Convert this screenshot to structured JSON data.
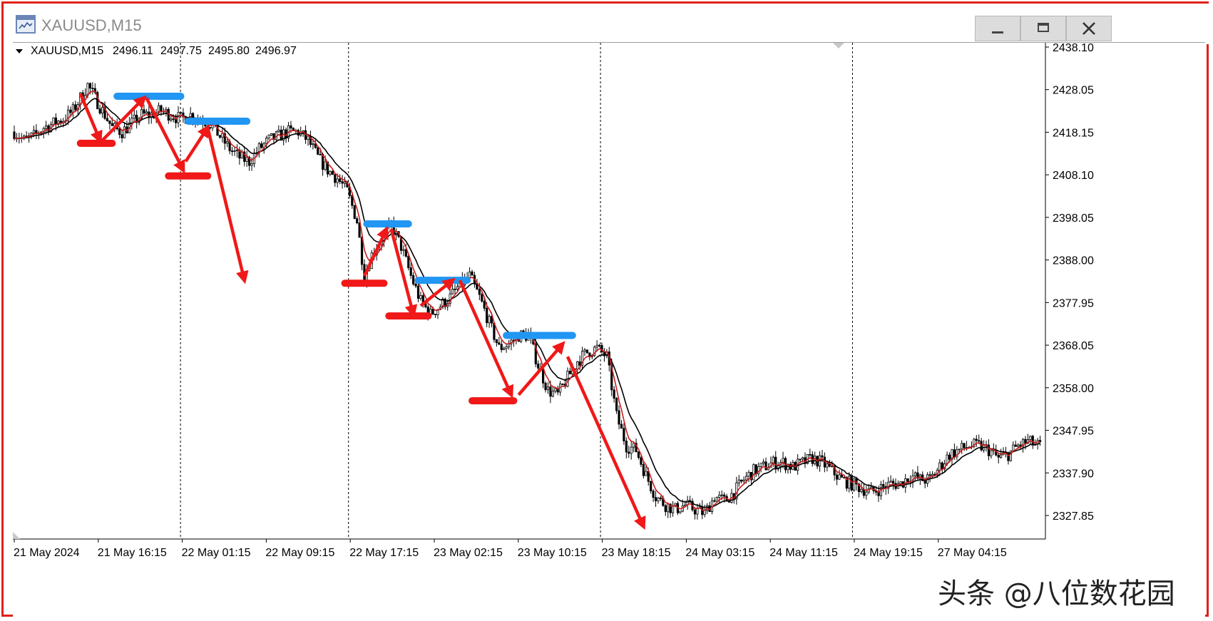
{
  "window": {
    "title": "XAUUSD,M15",
    "buttons": [
      "minimize-icon",
      "restore-icon",
      "close-icon"
    ]
  },
  "chart_header": {
    "symbol": "XAUUSD,M15",
    "open": "2496.11",
    "high": "2497.75",
    "low": "2495.80",
    "close": "2496.97"
  },
  "watermark": "头条 @八位数花园",
  "colors": {
    "frame": "#e0201c",
    "ma_fast": "#c81e1e",
    "ma_slow": "#000000",
    "resistance": "#2196f3",
    "support": "#f01818",
    "arrow": "#f01818"
  },
  "chart_data": {
    "type": "candlestick",
    "y_ticks": [
      "2438.10",
      "2428.05",
      "2418.15",
      "2408.10",
      "2398.05",
      "2388.00",
      "2377.95",
      "2368.05",
      "2358.00",
      "2347.95",
      "2337.90",
      "2327.85"
    ],
    "x_ticks": [
      "21 May 2024",
      "21 May 16:15",
      "22 May 01:15",
      "22 May 09:15",
      "22 May 17:15",
      "23 May 02:15",
      "23 May 10:15",
      "23 May 18:15",
      "24 May 03:15",
      "24 May 11:15",
      "24 May 19:15",
      "27 May 04:15"
    ],
    "ylim": [
      2323,
      2440
    ],
    "day_separators_x": [
      "22 May 01:15",
      "22 May 17:15",
      "23 May 18:15",
      "24 May 19:15"
    ],
    "path_points": [
      [
        0,
        2419
      ],
      [
        4,
        2417
      ],
      [
        8,
        2418
      ],
      [
        12,
        2420
      ],
      [
        16,
        2421
      ],
      [
        20,
        2422
      ],
      [
        24,
        2424
      ],
      [
        27,
        2427
      ],
      [
        30,
        2430
      ],
      [
        33,
        2427
      ],
      [
        36,
        2424
      ],
      [
        40,
        2420
      ],
      [
        44,
        2419
      ],
      [
        48,
        2421
      ],
      [
        52,
        2423
      ],
      [
        56,
        2423
      ],
      [
        60,
        2424
      ],
      [
        64,
        2423
      ],
      [
        68,
        2422
      ],
      [
        72,
        2423
      ],
      [
        76,
        2422
      ],
      [
        80,
        2421
      ],
      [
        84,
        2418
      ],
      [
        88,
        2415
      ],
      [
        92,
        2413
      ],
      [
        96,
        2412
      ],
      [
        100,
        2415
      ],
      [
        104,
        2417
      ],
      [
        108,
        2418
      ],
      [
        112,
        2419
      ],
      [
        116,
        2419
      ],
      [
        120,
        2417
      ],
      [
        124,
        2413
      ],
      [
        128,
        2410
      ],
      [
        132,
        2408
      ],
      [
        136,
        2405
      ],
      [
        140,
        2398
      ],
      [
        143,
        2385
      ],
      [
        146,
        2390
      ],
      [
        150,
        2394
      ],
      [
        154,
        2397
      ],
      [
        158,
        2392
      ],
      [
        162,
        2385
      ],
      [
        166,
        2379
      ],
      [
        170,
        2376
      ],
      [
        174,
        2378
      ],
      [
        178,
        2380
      ],
      [
        182,
        2383
      ],
      [
        186,
        2385
      ],
      [
        190,
        2380
      ],
      [
        194,
        2374
      ],
      [
        198,
        2368
      ],
      [
        202,
        2369
      ],
      [
        206,
        2371
      ],
      [
        210,
        2371
      ],
      [
        214,
        2364
      ],
      [
        218,
        2358
      ],
      [
        222,
        2357
      ],
      [
        226,
        2361
      ],
      [
        230,
        2365
      ],
      [
        234,
        2367
      ],
      [
        238,
        2368
      ],
      [
        242,
        2366
      ],
      [
        246,
        2352
      ],
      [
        250,
        2345
      ],
      [
        254,
        2344
      ],
      [
        258,
        2338
      ],
      [
        262,
        2333
      ],
      [
        266,
        2331
      ],
      [
        270,
        2330
      ],
      [
        274,
        2331
      ],
      [
        278,
        2330
      ],
      [
        282,
        2329
      ],
      [
        286,
        2333
      ],
      [
        290,
        2332
      ],
      [
        294,
        2334
      ],
      [
        298,
        2337
      ],
      [
        302,
        2339
      ],
      [
        306,
        2340
      ],
      [
        310,
        2341
      ],
      [
        314,
        2341
      ],
      [
        318,
        2340
      ],
      [
        322,
        2341
      ],
      [
        326,
        2342
      ],
      [
        330,
        2341
      ],
      [
        334,
        2339
      ],
      [
        338,
        2337
      ],
      [
        342,
        2336
      ],
      [
        346,
        2335
      ],
      [
        350,
        2334
      ],
      [
        354,
        2335
      ],
      [
        358,
        2336
      ],
      [
        362,
        2336
      ],
      [
        366,
        2338
      ],
      [
        370,
        2337
      ],
      [
        374,
        2337
      ],
      [
        378,
        2340
      ],
      [
        382,
        2343
      ],
      [
        386,
        2344
      ],
      [
        390,
        2345
      ],
      [
        394,
        2345
      ],
      [
        398,
        2344
      ],
      [
        402,
        2342
      ],
      [
        406,
        2343
      ],
      [
        410,
        2345
      ],
      [
        414,
        2346
      ],
      [
        418,
        2345
      ]
    ],
    "resistance_levels": [
      {
        "x": [
          42,
          68
        ],
        "y": 2427.4
      },
      {
        "x": [
          71,
          95
        ],
        "y": 2421.5
      },
      {
        "x": [
          144,
          161
        ],
        "y": 2397.3
      },
      {
        "x": [
          165,
          185
        ],
        "y": 2384.0
      },
      {
        "x": [
          201,
          228
        ],
        "y": 2371.0
      }
    ],
    "support_levels": [
      {
        "x": [
          27,
          40
        ],
        "y": 2416.3
      },
      {
        "x": [
          63,
          79
        ],
        "y": 2408.6
      },
      {
        "x": [
          135,
          151
        ],
        "y": 2383.3
      },
      {
        "x": [
          153,
          169
        ],
        "y": 2375.6
      },
      {
        "x": [
          187,
          204
        ],
        "y": 2355.6
      }
    ],
    "arrows": [
      [
        [
          27,
          2428
        ],
        [
          35,
          2417
        ]
      ],
      [
        [
          36,
          2417
        ],
        [
          53,
          2427
        ]
      ],
      [
        [
          54,
          2427
        ],
        [
          69,
          2410
        ]
      ],
      [
        [
          70,
          2412
        ],
        [
          79,
          2420
        ]
      ],
      [
        [
          79,
          2420
        ],
        [
          94,
          2384
        ]
      ],
      [
        [
          143,
          2385
        ],
        [
          152,
          2396
        ]
      ],
      [
        [
          154,
          2396
        ],
        [
          163,
          2376
        ]
      ],
      [
        [
          166,
          2378
        ],
        [
          179,
          2384
        ]
      ],
      [
        [
          182,
          2384
        ],
        [
          203,
          2357
        ]
      ],
      [
        [
          206,
          2357
        ],
        [
          224,
          2369
        ]
      ],
      [
        [
          226,
          2366
        ],
        [
          257,
          2326
        ]
      ]
    ]
  }
}
